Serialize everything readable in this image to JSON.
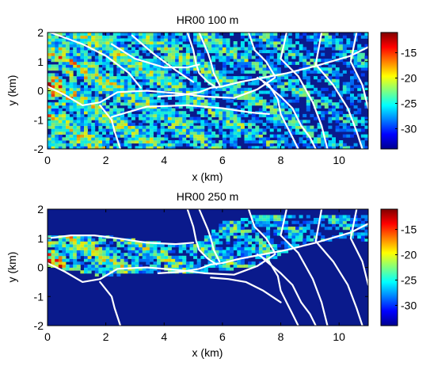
{
  "chart_data": [
    {
      "type": "heatmap",
      "title": "HR00 100 m",
      "xlabel": "x (km)",
      "ylabel": "y (km)",
      "xlim": [
        0,
        11
      ],
      "ylim": [
        -2,
        2
      ],
      "xticks": [
        0,
        2,
        4,
        6,
        8,
        10
      ],
      "yticks": [
        -2,
        -1,
        0,
        1,
        2
      ],
      "colorbar": {
        "ticks": [
          -15,
          -20,
          -25,
          -30
        ],
        "range": [
          -34,
          -11
        ],
        "colormap": "jet"
      },
      "background_color": "#0a1a8c",
      "source": {
        "x": 0.05,
        "y": 0.15
      },
      "overlay_lines": [
        {
          "x": [
            0.1,
            1.2,
            2.0,
            2.8,
            3.2
          ],
          "y": [
            2.0,
            1.6,
            1.2,
            0.6,
            0.1
          ]
        },
        {
          "x": [
            0.0,
            0.6,
            1.2,
            1.8,
            2.4,
            3.4,
            4.6,
            5.4,
            6.4,
            7.2,
            7.8
          ],
          "y": [
            0.15,
            -0.15,
            -0.5,
            -0.4,
            -0.05,
            0.0,
            -0.1,
            -0.2,
            -0.25,
            0.05,
            0.45
          ]
        },
        {
          "x": [
            1.8,
            2.2,
            2.3,
            2.4,
            2.5
          ],
          "y": [
            -0.5,
            -1.0,
            -1.4,
            -1.7,
            -2.0
          ]
        },
        {
          "x": [
            2.2,
            3.4,
            4.8,
            6.0,
            7.0,
            7.6
          ],
          "y": [
            -0.9,
            -0.55,
            -0.5,
            -0.6,
            -0.75,
            -0.8
          ]
        },
        {
          "x": [
            3.8,
            4.6,
            5.2,
            5.6,
            6.0,
            6.6,
            7.4,
            8.2,
            9.2,
            10.4,
            11.0
          ],
          "y": [
            -0.2,
            -0.15,
            -0.05,
            0.1,
            0.15,
            0.3,
            0.45,
            0.6,
            0.85,
            1.2,
            1.5
          ]
        },
        {
          "x": [
            4.8,
            5.0,
            5.1,
            5.2,
            5.5,
            5.8
          ],
          "y": [
            2.0,
            1.4,
            0.9,
            0.6,
            0.3,
            0.1
          ]
        },
        {
          "x": [
            5.2,
            5.5,
            5.6,
            5.7,
            5.9
          ],
          "y": [
            2.0,
            1.3,
            1.0,
            0.6,
            0.2
          ]
        },
        {
          "x": [
            2.2,
            3.0,
            4.0,
            4.8,
            5.2
          ],
          "y": [
            1.6,
            1.1,
            0.8,
            0.8,
            0.9
          ]
        },
        {
          "x": [
            2.9,
            3.6,
            4.4,
            5.0
          ],
          "y": [
            1.9,
            1.3,
            0.7,
            0.3
          ]
        },
        {
          "x": [
            7.2,
            7.6,
            7.9,
            8.0,
            8.2,
            8.4,
            8.6
          ],
          "y": [
            0.45,
            0.2,
            -0.3,
            -0.8,
            -1.2,
            -1.6,
            -2.0
          ]
        },
        {
          "x": [
            6.9,
            7.1,
            7.3,
            7.5,
            7.8
          ],
          "y": [
            2.0,
            1.4,
            1.2,
            1.0,
            0.5
          ]
        },
        {
          "x": [
            7.4,
            8.0,
            8.4,
            8.7,
            9.0,
            9.2
          ],
          "y": [
            0.3,
            -0.2,
            -0.6,
            -1.2,
            -1.6,
            -2.0
          ]
        },
        {
          "x": [
            8.2,
            8.0,
            8.6,
            9.1,
            9.4,
            9.6
          ],
          "y": [
            2.0,
            1.1,
            0.5,
            -0.4,
            -1.2,
            -2.0
          ]
        },
        {
          "x": [
            9.4,
            9.2,
            9.8,
            10.3,
            10.6,
            10.8
          ],
          "y": [
            2.0,
            0.9,
            0.2,
            -0.6,
            -1.4,
            -2.0
          ]
        },
        {
          "x": [
            10.6,
            10.4,
            10.8,
            11.0
          ],
          "y": [
            2.0,
            1.0,
            0.2,
            -0.6
          ]
        }
      ]
    },
    {
      "type": "heatmap",
      "title": "HR00 250 m",
      "xlabel": "x (km)",
      "ylabel": "y (km)",
      "xlim": [
        0,
        11
      ],
      "ylim": [
        -2,
        2
      ],
      "xticks": [
        0,
        2,
        4,
        6,
        8,
        10
      ],
      "yticks": [
        -2,
        -1,
        0,
        1,
        2
      ],
      "colorbar": {
        "ticks": [
          -15,
          -20,
          -25,
          -30
        ],
        "range": [
          -34,
          -11
        ],
        "colormap": "jet"
      },
      "background_color": "#0a1a8c",
      "source": {
        "x": 0.05,
        "y": 0.15
      },
      "active_region": {
        "x": [
          0.0,
          1.0,
          2.0,
          3.0,
          4.0,
          5.0,
          6.0,
          7.0,
          8.0,
          9.0,
          10.0,
          11.0
        ],
        "y_top": [
          1.1,
          1.1,
          1.1,
          0.95,
          0.85,
          0.75,
          1.6,
          1.8,
          1.8,
          1.8,
          1.8,
          1.8
        ],
        "y_bottom": [
          0.05,
          -0.15,
          -0.3,
          -0.2,
          -0.15,
          -0.25,
          -0.1,
          0.0,
          0.4,
          0.9,
          0.9,
          0.9
        ]
      },
      "overlay_lines": [
        {
          "x": [
            0.0,
            0.6,
            1.2,
            1.8,
            2.4,
            3.4,
            4.6,
            5.4,
            6.4,
            7.2,
            7.8
          ],
          "y": [
            0.15,
            -0.15,
            -0.5,
            -0.4,
            -0.05,
            0.0,
            -0.1,
            -0.2,
            -0.25,
            0.05,
            0.45
          ]
        },
        {
          "x": [
            0.0,
            0.8,
            1.6,
            2.4,
            3.4,
            4.4,
            5.0
          ],
          "y": [
            1.0,
            1.1,
            1.1,
            1.0,
            0.85,
            0.8,
            0.85
          ]
        },
        {
          "x": [
            1.8,
            2.2,
            2.3,
            2.4,
            2.5
          ],
          "y": [
            -0.5,
            -1.0,
            -1.4,
            -1.7,
            -2.0
          ]
        },
        {
          "x": [
            3.8,
            4.6,
            5.2,
            5.6,
            6.0,
            6.6,
            7.4,
            8.2,
            9.2,
            10.4,
            11.0
          ],
          "y": [
            -0.2,
            -0.15,
            -0.05,
            0.1,
            0.15,
            0.3,
            0.45,
            0.6,
            0.85,
            1.2,
            1.5
          ]
        },
        {
          "x": [
            4.8,
            5.0,
            5.1,
            5.2,
            5.5,
            5.8
          ],
          "y": [
            2.0,
            1.4,
            0.9,
            0.6,
            0.3,
            0.1
          ]
        },
        {
          "x": [
            5.2,
            5.5,
            5.6,
            5.7,
            5.9
          ],
          "y": [
            2.0,
            1.3,
            1.0,
            0.6,
            0.2
          ]
        },
        {
          "x": [
            5.6,
            6.2,
            6.8,
            7.4,
            8.0
          ],
          "y": [
            -0.35,
            -0.4,
            -0.5,
            -0.8,
            -1.2
          ]
        },
        {
          "x": [
            7.2,
            7.6,
            7.9,
            8.0,
            8.2,
            8.4,
            8.6
          ],
          "y": [
            0.45,
            0.2,
            -0.3,
            -0.8,
            -1.2,
            -1.6,
            -2.0
          ]
        },
        {
          "x": [
            6.9,
            7.1,
            7.3,
            7.5,
            7.8
          ],
          "y": [
            2.0,
            1.4,
            1.2,
            1.0,
            0.5
          ]
        },
        {
          "x": [
            7.4,
            8.0,
            8.4,
            8.7,
            9.0,
            9.2
          ],
          "y": [
            0.3,
            -0.2,
            -0.6,
            -1.2,
            -1.6,
            -2.0
          ]
        },
        {
          "x": [
            8.2,
            8.0,
            8.6,
            9.1,
            9.4,
            9.6
          ],
          "y": [
            2.0,
            1.1,
            0.5,
            -0.4,
            -1.2,
            -2.0
          ]
        },
        {
          "x": [
            9.4,
            9.2,
            9.8,
            10.3,
            10.6,
            10.8
          ],
          "y": [
            2.0,
            0.9,
            0.2,
            -0.6,
            -1.4,
            -2.0
          ]
        },
        {
          "x": [
            10.6,
            10.4,
            10.8,
            11.0
          ],
          "y": [
            2.0,
            1.0,
            0.2,
            -0.6
          ]
        }
      ]
    }
  ]
}
